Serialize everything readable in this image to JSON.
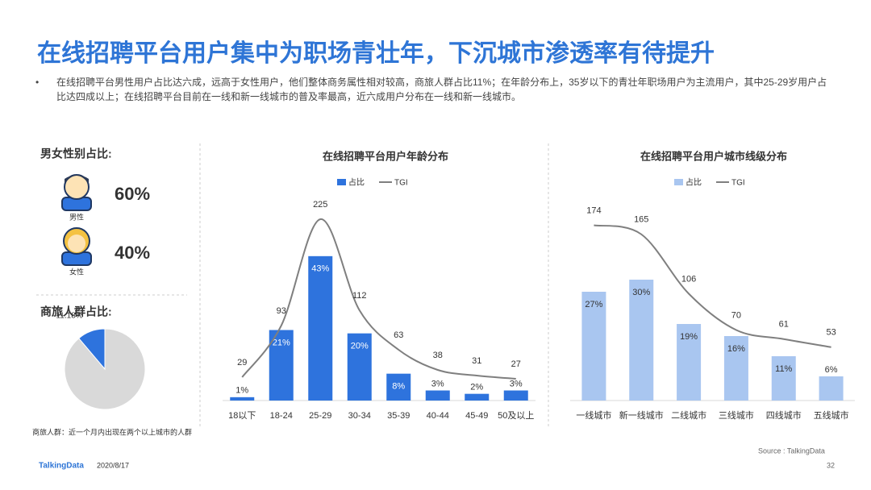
{
  "title": "在线招聘平台用户集中为职场青壮年，下沉城市渗透率有待提升",
  "bullet": "在线招聘平台男性用户占比达六成，远高于女性用户，他们整体商务属性相对较高，商旅人群占比11%；在年龄分布上，35岁以下的青壮年职场用户为主流用户，其中25-29岁用户占比达四成以上；在线招聘平台目前在一线和新一线城市的普及率最高，近六成用户分布在一线和新一线城市。",
  "gender": {
    "title": "男女性别占比:",
    "items": [
      {
        "label": "男性",
        "value": "60%"
      },
      {
        "label": "女性",
        "value": "40%"
      }
    ]
  },
  "note": "商旅人群：近一个月内出现在两个以上城市的人群",
  "footer": {
    "brand": "TalkingData",
    "date": "2020/8/17",
    "source": "Source : TalkingData",
    "page": "32"
  },
  "chart_data": [
    {
      "type": "pie",
      "title": "商旅人群占比:",
      "values": [
        11.18,
        88.82
      ],
      "value_labels": [
        "11.18%",
        null
      ],
      "colors": [
        "#2e73dd",
        "#d9d9d9"
      ]
    },
    {
      "type": "bar",
      "title": "在线招聘平台用户年龄分布",
      "categories": [
        "18以下",
        "18-24",
        "25-29",
        "30-34",
        "35-39",
        "40-44",
        "45-49",
        "50及以上"
      ],
      "series": [
        {
          "name": "占比",
          "type": "bar",
          "color": "#2e73dd",
          "values": [
            1,
            21,
            43,
            20,
            8,
            3,
            2,
            3
          ],
          "value_labels": [
            "1%",
            "21%",
            "43%",
            "20%",
            "8%",
            "3%",
            "2%",
            "3%"
          ]
        },
        {
          "name": "TGI",
          "type": "line",
          "axis": "y2",
          "color": "#7f7f7f",
          "values": [
            29,
            93,
            225,
            112,
            63,
            38,
            31,
            27
          ]
        }
      ],
      "ylim": [
        0,
        60
      ],
      "y2lim": [
        0,
        250
      ]
    },
    {
      "type": "bar",
      "title": "在线招聘平台用户城市线级分布",
      "categories": [
        "一线城市",
        "新一线城市",
        "二线城市",
        "三线城市",
        "四线城市",
        "五线城市"
      ],
      "series": [
        {
          "name": "占比",
          "type": "bar",
          "color": "#a9c6f0",
          "values": [
            27,
            30,
            19,
            16,
            11,
            6
          ],
          "value_labels": [
            "27%",
            "30%",
            "19%",
            "16%",
            "11%",
            "6%"
          ]
        },
        {
          "name": "TGI",
          "type": "line",
          "axis": "y2",
          "color": "#7f7f7f",
          "values": [
            174,
            165,
            106,
            70,
            61,
            53
          ]
        }
      ],
      "ylim": [
        0,
        50
      ],
      "y2lim": [
        0,
        200
      ]
    }
  ]
}
